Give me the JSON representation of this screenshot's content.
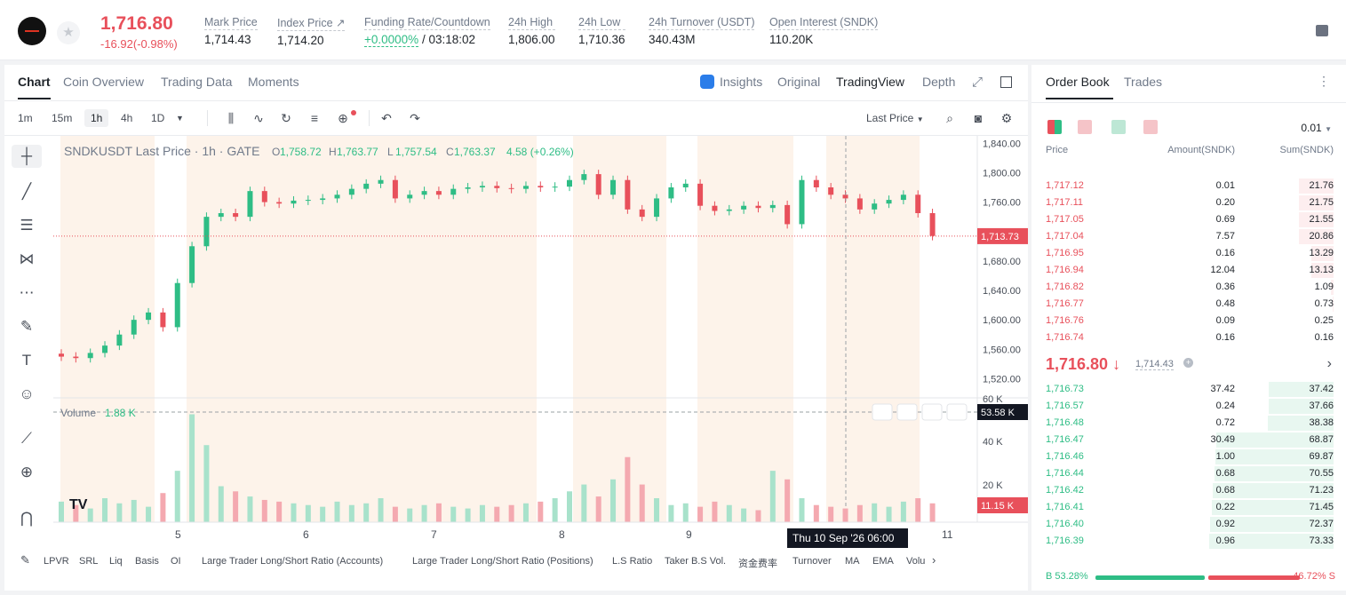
{
  "header": {
    "last_price": "1,716.80",
    "change": "-16.92(-0.98%)",
    "stats": [
      {
        "label": "Mark Price",
        "value": "1,714.43"
      },
      {
        "label": "Index Price ↗",
        "value": "1,714.20"
      },
      {
        "label": "Funding Rate/Countdown",
        "value_green": "+0.0000%",
        "value": " / 03:18:02"
      },
      {
        "label": "24h High",
        "value": "1,806.00"
      },
      {
        "label": "24h Low",
        "value": "1,710.36"
      },
      {
        "label": "24h Turnover (USDT)",
        "value": "340.43M"
      },
      {
        "label": "Open Interest (SNDK)",
        "value": "110.20K"
      }
    ]
  },
  "chart_tabs": [
    "Chart",
    "Coin Overview",
    "Trading Data",
    "Moments"
  ],
  "view_tabs": [
    "Insights",
    "Original",
    "TradingView",
    "Depth"
  ],
  "timeframes": [
    "1m",
    "15m",
    "1h",
    "4h",
    "1D"
  ],
  "selected_timeframe": "1h",
  "price_type": "Last Price",
  "legend": {
    "symbol": "SNDKUSDT Last Price · 1h · GATE",
    "o": "1,758.72",
    "h": "1,763.77",
    "l": "1,757.54",
    "c": "1,763.37",
    "chg": "4.58 (+0.26%)"
  },
  "volume_label": "Volume",
  "volume_value": "1.88 K",
  "price_tag": "1,713.73",
  "volume_tag_top": "53.58 K",
  "volume_tag": "11.15 K",
  "crosshair_label": "Thu 10 Sep '26   06:00",
  "price_axis": [
    "1,840.00",
    "1,800.00",
    "1,760.00",
    "1,720.00",
    "1,680.00",
    "1,640.00",
    "1,600.00",
    "1,560.00",
    "1,520.00"
  ],
  "volume_axis": [
    "60 K",
    "40 K",
    "20 K"
  ],
  "time_axis": [
    "5",
    "6",
    "7",
    "8",
    "9",
    "11"
  ],
  "indicators": [
    "LPVR",
    "SRL",
    "Liq",
    "Basis",
    "OI",
    "Large Trader Long/Short Ratio (Accounts)",
    "Large Trader Long/Short Ratio (Positions)",
    "L.S Ratio",
    "Taker B.S Vol.",
    "资金费率",
    "Turnover",
    "MA",
    "EMA",
    "Volu"
  ],
  "chart_data": {
    "type": "candlestick",
    "title": "SNDKUSDT Last Price · 1h · GATE",
    "x": [
      "5",
      "6",
      "7",
      "8",
      "9",
      "11"
    ],
    "ylim": [
      1500,
      1850
    ],
    "close_approx": [
      1550,
      1548,
      1555,
      1565,
      1580,
      1600,
      1610,
      1590,
      1650,
      1700,
      1740,
      1745,
      1740,
      1775,
      1760,
      1758,
      1762,
      1763,
      1765,
      1770,
      1778,
      1785,
      1790,
      1765,
      1770,
      1775,
      1770,
      1778,
      1780,
      1782,
      1779,
      1778,
      1782,
      1780,
      1781,
      1790,
      1798,
      1770,
      1790,
      1750,
      1740,
      1765,
      1780,
      1785,
      1755,
      1748,
      1750,
      1755,
      1752,
      1756,
      1730,
      1790,
      1780,
      1770,
      1765,
      1750,
      1758,
      1763,
      1770,
      1745,
      1714
    ],
    "volume_series_k": [
      12,
      10,
      8,
      14,
      11,
      13,
      9,
      17,
      30,
      63,
      45,
      21,
      18,
      15,
      13,
      12,
      11,
      10,
      9,
      12,
      10,
      11,
      14,
      9,
      8,
      10,
      11,
      9,
      8,
      10,
      9,
      10,
      11,
      12,
      14,
      18,
      22,
      15,
      25,
      38,
      22,
      14,
      10,
      11,
      9,
      12,
      10,
      8,
      7,
      30,
      25,
      14,
      10,
      9,
      8,
      10,
      11,
      9,
      12,
      14,
      11
    ]
  },
  "orderbook": {
    "tabs": [
      "Order Book",
      "Trades"
    ],
    "precision": "0.01",
    "cols": [
      "Price",
      "Amount(SNDK)",
      "Sum(SNDK)"
    ],
    "asks": [
      {
        "p": "1,717.12",
        "a": "0.01",
        "s": "21.76",
        "w": 0.28
      },
      {
        "p": "1,717.11",
        "a": "0.20",
        "s": "21.75",
        "w": 0.28
      },
      {
        "p": "1,717.05",
        "a": "0.69",
        "s": "21.55",
        "w": 0.28
      },
      {
        "p": "1,717.04",
        "a": "7.57",
        "s": "20.86",
        "w": 0.28
      },
      {
        "p": "1,716.95",
        "a": "0.16",
        "s": "13.29",
        "w": 0.18
      },
      {
        "p": "1,716.94",
        "a": "12.04",
        "s": "13.13",
        "w": 0.18
      },
      {
        "p": "1,716.82",
        "a": "0.36",
        "s": "1.09",
        "w": 0.02
      },
      {
        "p": "1,716.77",
        "a": "0.48",
        "s": "0.73",
        "w": 0.01
      },
      {
        "p": "1,716.76",
        "a": "0.09",
        "s": "0.25",
        "w": 0.0
      },
      {
        "p": "1,716.74",
        "a": "0.16",
        "s": "0.16",
        "w": 0.0
      }
    ],
    "mid_price": "1,716.80 ↓",
    "mark": "1,714.43",
    "bids": [
      {
        "p": "1,716.73",
        "a": "37.42",
        "s": "37.42",
        "w": 0.52
      },
      {
        "p": "1,716.57",
        "a": "0.24",
        "s": "37.66",
        "w": 0.52
      },
      {
        "p": "1,716.48",
        "a": "0.72",
        "s": "38.38",
        "w": 0.53
      },
      {
        "p": "1,716.47",
        "a": "30.49",
        "s": "68.87",
        "w": 0.94
      },
      {
        "p": "1,716.46",
        "a": "1.00",
        "s": "69.87",
        "w": 0.95
      },
      {
        "p": "1,716.44",
        "a": "0.68",
        "s": "70.55",
        "w": 0.96
      },
      {
        "p": "1,716.42",
        "a": "0.68",
        "s": "71.23",
        "w": 0.97
      },
      {
        "p": "1,716.41",
        "a": "0.22",
        "s": "71.45",
        "w": 0.98
      },
      {
        "p": "1,716.40",
        "a": "0.92",
        "s": "72.37",
        "w": 0.99
      },
      {
        "p": "1,716.39",
        "a": "0.96",
        "s": "73.33",
        "w": 1.0
      }
    ],
    "buy_ratio": "B 53.28%",
    "sell_ratio": "46.72% S",
    "buy_pct": 53.28
  },
  "colors": {
    "up": "#2ebd85",
    "down": "#e8505b",
    "session": "#fdf3ea"
  }
}
